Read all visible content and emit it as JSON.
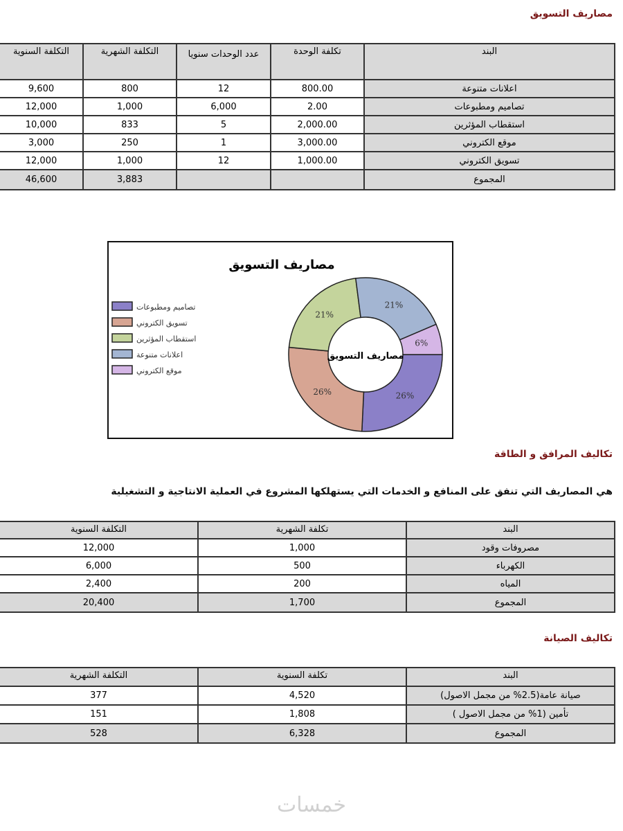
{
  "marketing": {
    "heading": "مصاريف التسويق",
    "headers": [
      "البند",
      "تكلفة الوحدة",
      "عدد الوحدات سنويا",
      "التكلفة الشهرية",
      "التكلفة السنوية"
    ],
    "rows": [
      [
        "اعلانات متنوعة",
        "800.00",
        "12",
        "800",
        "9,600"
      ],
      [
        "تصاميم ومطبوعات",
        "2.00",
        "6,000",
        "1,000",
        "12,000"
      ],
      [
        "استقطاب المؤثرين",
        "2,000.00",
        "5",
        "833",
        "10,000"
      ],
      [
        "موقع الكتروني",
        "3,000.00",
        "1",
        "250",
        "3,000"
      ],
      [
        "تسويق الكتروني",
        "1,000.00",
        "12",
        "1,000",
        "12,000"
      ]
    ],
    "total": [
      "المجموع",
      "",
      "",
      "3,883",
      "46,600"
    ]
  },
  "chart_data": {
    "type": "pie",
    "donut": true,
    "title": "مصاريف التسويق",
    "center_label": "مصاريف التسويق",
    "legend_position": "left",
    "categories": [
      "تصاميم ومطبوعات",
      "تسويق الكتروني",
      "استقطاب المؤثرين",
      "اعلانات متنوعة",
      "موقع الكتروني"
    ],
    "values": [
      12000,
      12000,
      10000,
      9600,
      3000
    ],
    "labels": [
      "26%",
      "26%",
      "21%",
      "21%",
      "6%"
    ],
    "colors": [
      "#8b80c8",
      "#d7a593",
      "#c4d49c",
      "#a3b5d2",
      "#d5b6e6"
    ]
  },
  "utilities": {
    "heading": "تكاليف المرافق و الطاقة",
    "description": "هي المصاريف التي تنفق على المنافع و الخدمات التي يستهلكها المشروع في العملية الانتاجية و التشغيلية",
    "headers": [
      "البند",
      "تكلفة الشهرية",
      "التكلفة السنوية"
    ],
    "rows": [
      [
        "مصروفات وقود",
        "1,000",
        "12,000"
      ],
      [
        "الكهرباء",
        "500",
        "6,000"
      ],
      [
        "المياه",
        "200",
        "2,400"
      ]
    ],
    "total": [
      "المجموع",
      "1,700",
      "20,400"
    ]
  },
  "maintenance": {
    "heading": "تكاليف الصيانة",
    "headers": [
      "البند",
      "تكلفة السنوية",
      "التكلفة الشهرية"
    ],
    "rows": [
      [
        "صيانة عامة(2.5% من مجمل الاصول)",
        "4,520",
        "377"
      ],
      [
        "تأمين (1% من مجمل الاصول )",
        "1,808",
        "151"
      ]
    ],
    "total": [
      "المجموع",
      "6,328",
      "528"
    ]
  },
  "watermark": "خمسات"
}
